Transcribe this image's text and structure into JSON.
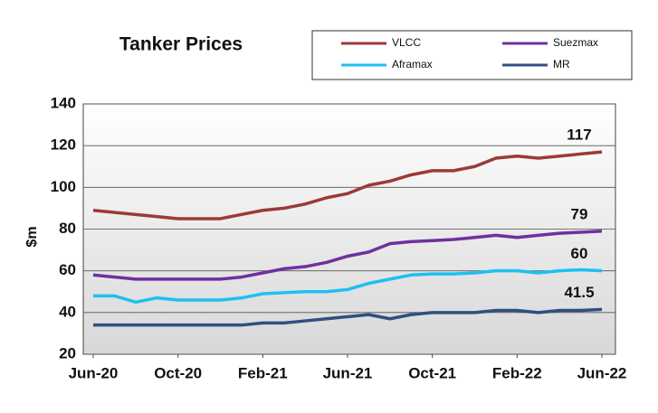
{
  "chart_data": {
    "type": "line",
    "title": "Tanker Prices",
    "y_label": "$m",
    "categories": [
      "Jun-20",
      null,
      null,
      null,
      "Oct-20",
      null,
      null,
      null,
      "Feb-21",
      null,
      null,
      null,
      "Jun-21",
      null,
      null,
      null,
      "Oct-21",
      null,
      null,
      null,
      "Feb-22",
      null,
      null,
      null,
      "Jun-22"
    ],
    "series": [
      {
        "name": "VLCC",
        "color": "#9b3a3a",
        "values": [
          89,
          88,
          87,
          86,
          85,
          85,
          85,
          87,
          89,
          90,
          92,
          95,
          97,
          101,
          103,
          106,
          108,
          108,
          110,
          114,
          115,
          114,
          115,
          116,
          117
        ]
      },
      {
        "name": "Suezmax",
        "color": "#7030a0",
        "values": [
          58,
          57,
          56,
          56,
          56,
          56,
          56,
          57,
          59,
          61,
          62,
          64,
          67,
          69,
          73,
          74,
          74.5,
          75,
          76,
          77,
          76,
          77,
          78,
          78.5,
          79
        ]
      },
      {
        "name": "Aframax",
        "color": "#1ec0f0",
        "values": [
          48,
          48,
          45,
          47,
          46,
          46,
          46,
          47,
          49,
          49.5,
          50,
          50,
          51,
          54,
          56,
          58,
          58.5,
          58.5,
          59,
          60,
          60,
          59,
          60,
          60.5,
          60
        ]
      },
      {
        "name": "MR",
        "color": "#2f5080",
        "values": [
          34,
          34,
          34,
          34,
          34,
          34,
          34,
          34,
          35,
          35,
          36,
          37,
          38,
          39,
          37,
          39,
          40,
          40,
          40,
          41,
          41,
          40,
          41,
          41,
          41.5
        ]
      }
    ],
    "ylim": [
      20,
      140
    ],
    "yticks": [
      20,
      40,
      60,
      80,
      100,
      120,
      140
    ],
    "grid": true,
    "legend": "top"
  }
}
